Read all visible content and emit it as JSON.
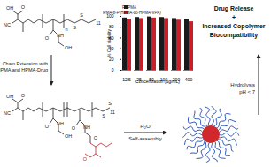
{
  "chart_data": {
    "type": "bar",
    "categories": [
      "12.5",
      "25",
      "50",
      "100",
      "200",
      "400"
    ],
    "series": [
      {
        "name": "PHPMA",
        "color": "#1a1a1a",
        "values": [
          97,
          98,
          99,
          98,
          96,
          95
        ]
      },
      {
        "name": "PHPMA-b-P(HPMA-co-HPMA-VPA)",
        "color": "#c8202a",
        "values": [
          95,
          96,
          97,
          96,
          93,
          90
        ]
      }
    ],
    "y_label": "% Cell viability",
    "x_label": "Concentration (µg/mL)",
    "ylim": [
      0,
      100
    ],
    "yticks": [
      0,
      20,
      40,
      60,
      80,
      100
    ],
    "legend": "top"
  },
  "headline": [
    "Drug Release",
    "+",
    "Increased Copolymer",
    "Biocompatibility"
  ],
  "step_chain_extension": [
    "Chain Extension with",
    "HPMA and HPMA-Drug"
  ],
  "step_assembly": {
    "above": "H₂O",
    "below": "Self-assembly"
  },
  "step_hydrolysis": [
    "Hydrolysis",
    "pH < 7"
  ],
  "structure_top": {
    "labels": [
      "O",
      "OH",
      "NC",
      "S",
      "S",
      "11",
      "n",
      "O",
      "NH",
      "OH"
    ]
  },
  "structure_bottom": {
    "labels": [
      "O",
      "OH",
      "NC",
      "S",
      "S",
      "11",
      "O",
      "NH",
      "OH",
      "O",
      "NH",
      "O",
      "O"
    ]
  }
}
